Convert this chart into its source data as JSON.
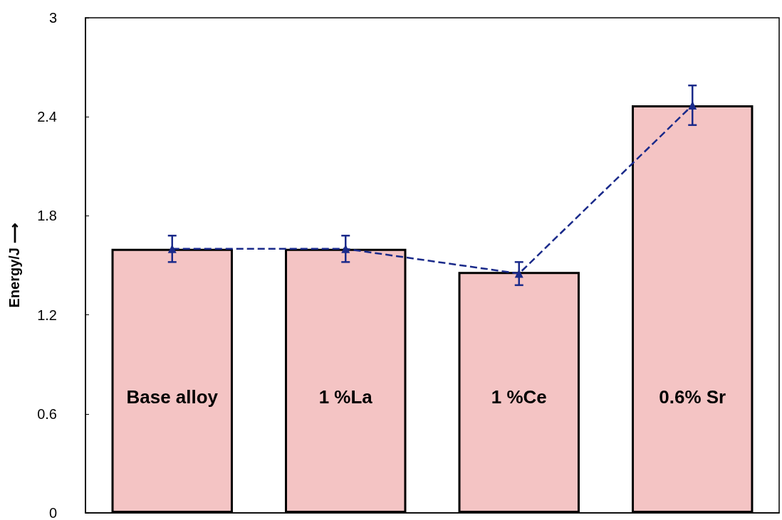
{
  "chart_data": {
    "type": "bar",
    "ylabel": "Energy/J ⟶",
    "categories": [
      "Base alloy",
      "1 %La",
      "1 %Ce",
      "0.6% Sr"
    ],
    "series": [
      {
        "type": "bar",
        "color": "#f4c4c4",
        "values": [
          1.6,
          1.6,
          1.46,
          2.47
        ]
      },
      {
        "type": "line",
        "color": "#1a2a8a",
        "values": [
          1.6,
          1.6,
          1.45,
          2.47
        ],
        "errors": [
          0.08,
          0.08,
          0.07,
          0.12
        ],
        "marker": "triangle",
        "line_style": "dashed"
      }
    ],
    "ylim": [
      0,
      3
    ],
    "yticks": [
      0,
      0.6,
      1.2,
      1.8,
      2.4,
      3
    ],
    "grid": false
  }
}
